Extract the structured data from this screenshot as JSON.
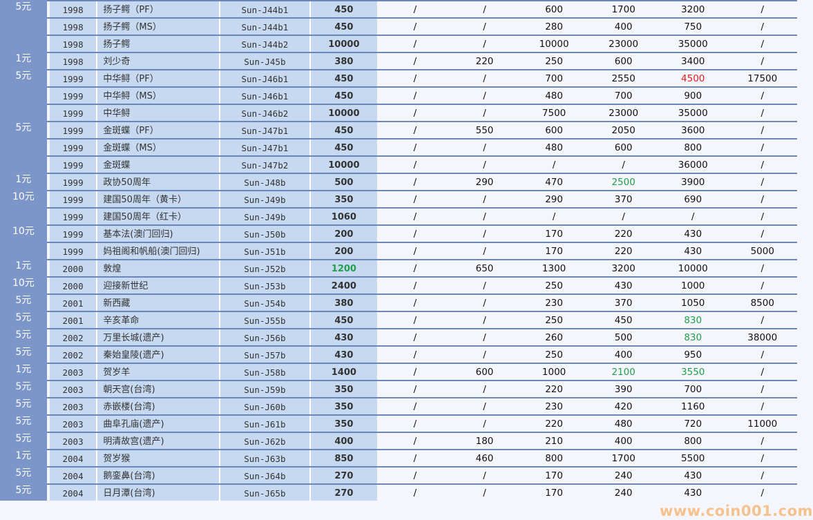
{
  "colors": {
    "green": "#1fa04a",
    "red": "#e41b1b",
    "denom_bg": "#7d96c9",
    "info_bg": "#c6d9f0"
  },
  "rows": [
    {
      "denom": "5元",
      "year": "1998",
      "name": "扬子鳄（PF）",
      "code": "Sun-J44b1",
      "issue": "450",
      "prices": [
        "/",
        "/",
        "600",
        "1700",
        "3200",
        "/"
      ]
    },
    {
      "denom": "",
      "year": "1998",
      "name": "扬子鳄（MS）",
      "code": "Sun-J44b1",
      "issue": "450",
      "prices": [
        "/",
        "/",
        "280",
        "400",
        "750",
        "/"
      ]
    },
    {
      "denom": "",
      "year": "1998",
      "name": "扬子鳄",
      "code": "Sun-J44b2",
      "issue": "10000",
      "prices": [
        "/",
        "/",
        "10000",
        "23000",
        "35000",
        "/"
      ]
    },
    {
      "denom": "1元",
      "year": "1998",
      "name": "刘少奇",
      "code": "Sun-J45b",
      "issue": "380",
      "prices": [
        "/",
        "220",
        "250",
        "600",
        "3400",
        "/"
      ]
    },
    {
      "denom": "5元",
      "year": "1999",
      "name": "中华鲟（PF）",
      "code": "Sun-J46b1",
      "issue": "450",
      "prices": [
        "/",
        "/",
        "700",
        "2550",
        "4500",
        "17500"
      ],
      "highlight": {
        "4": "red"
      }
    },
    {
      "denom": "",
      "year": "1999",
      "name": "中华鲟（MS）",
      "code": "Sun-J46b1",
      "issue": "450",
      "prices": [
        "/",
        "/",
        "480",
        "700",
        "900",
        "/"
      ],
      "cont": true
    },
    {
      "denom": "",
      "year": "1999",
      "name": "中华鲟",
      "code": "Sun-J46b2",
      "issue": "10000",
      "prices": [
        "/",
        "/",
        "7500",
        "23000",
        "35000",
        "/"
      ],
      "cont": true
    },
    {
      "denom": "5元",
      "year": "1999",
      "name": "金斑蝶（PF）",
      "code": "Sun-J47b1",
      "issue": "450",
      "prices": [
        "/",
        "550",
        "600",
        "2050",
        "3600",
        "/"
      ]
    },
    {
      "denom": "",
      "year": "1999",
      "name": "金斑蝶（MS）",
      "code": "Sun-J47b1",
      "issue": "450",
      "prices": [
        "/",
        "/",
        "480",
        "600",
        "800",
        "/"
      ],
      "cont": true
    },
    {
      "denom": "",
      "year": "1999",
      "name": "金斑蝶",
      "code": "Sun-J47b2",
      "issue": "10000",
      "prices": [
        "/",
        "/",
        "/",
        "/",
        "36000",
        "/"
      ],
      "cont": true
    },
    {
      "denom": "1元",
      "year": "1999",
      "name": "政协50周年",
      "code": "Sun-J48b",
      "issue": "500",
      "prices": [
        "/",
        "290",
        "470",
        "2500",
        "3900",
        "/"
      ],
      "highlight": {
        "3": "green"
      }
    },
    {
      "denom": "10元",
      "year": "1999",
      "name": "建国50周年（黄卡）",
      "code": "Sun-J49b",
      "issue": "350",
      "prices": [
        "/",
        "/",
        "290",
        "370",
        "690",
        "/"
      ]
    },
    {
      "denom": "",
      "year": "1999",
      "name": "建国50周年（红卡）",
      "code": "Sun-J49b",
      "issue": "1060",
      "prices": [
        "/",
        "/",
        "/",
        "/",
        "/",
        "/"
      ]
    },
    {
      "denom": "10元",
      "year": "1999",
      "name": "基本法(澳门回归)",
      "code": "Sun-J50b",
      "issue": "200",
      "prices": [
        "/",
        "/",
        "170",
        "220",
        "430",
        "/"
      ]
    },
    {
      "denom": "",
      "year": "1999",
      "name": "妈祖阁和帆船(澳门回归)",
      "code": "Sun-J51b",
      "issue": "200",
      "prices": [
        "/",
        "/",
        "170",
        "220",
        "430",
        "5000"
      ],
      "cont": true
    },
    {
      "denom": "1元",
      "year": "2000",
      "name": "敦煌",
      "code": "Sun-J52b",
      "issue": "1200",
      "issue_highlight": "green",
      "prices": [
        "/",
        "650",
        "1300",
        "3200",
        "10000",
        "/"
      ]
    },
    {
      "denom": "10元",
      "year": "2000",
      "name": "迎接新世纪",
      "code": "Sun-J53b",
      "issue": "2400",
      "prices": [
        "/",
        "/",
        "250",
        "430",
        "1000",
        "/"
      ]
    },
    {
      "denom": "5元",
      "year": "2001",
      "name": "新西藏",
      "code": "Sun-J54b",
      "issue": "380",
      "prices": [
        "/",
        "/",
        "230",
        "370",
        "1050",
        "8500"
      ]
    },
    {
      "denom": "5元",
      "year": "2001",
      "name": "辛亥革命",
      "code": "Sun-J55b",
      "issue": "450",
      "prices": [
        "/",
        "/",
        "250",
        "450",
        "830",
        "/"
      ],
      "highlight": {
        "4": "green"
      }
    },
    {
      "denom": "5元",
      "year": "2002",
      "name": "万里长城(遗产)",
      "code": "Sun-J56b",
      "issue": "430",
      "prices": [
        "/",
        "/",
        "260",
        "500",
        "830",
        "38000"
      ],
      "highlight": {
        "4": "green"
      }
    },
    {
      "denom": "5元",
      "year": "2002",
      "name": "秦始皇陵(遗产)",
      "code": "Sun-J57b",
      "issue": "430",
      "prices": [
        "/",
        "/",
        "250",
        "400",
        "950",
        "/"
      ]
    },
    {
      "denom": "1元",
      "year": "2003",
      "name": "贺岁羊",
      "code": "Sun-J58b",
      "issue": "1400",
      "prices": [
        "/",
        "600",
        "1000",
        "2100",
        "3550",
        "/"
      ],
      "highlight": {
        "3": "green",
        "4": "green"
      }
    },
    {
      "denom": "5元",
      "year": "2003",
      "name": "朝天宫(台湾)",
      "code": "Sun-J59b",
      "issue": "350",
      "prices": [
        "/",
        "/",
        "220",
        "390",
        "700",
        "/"
      ]
    },
    {
      "denom": "5元",
      "year": "2003",
      "name": "赤嵌楼(台湾)",
      "code": "Sun-J60b",
      "issue": "350",
      "prices": [
        "/",
        "/",
        "230",
        "420",
        "1160",
        "/"
      ]
    },
    {
      "denom": "5元",
      "year": "2003",
      "name": "曲阜孔庙(遗产)",
      "code": "Sun-J61b",
      "issue": "350",
      "prices": [
        "/",
        "/",
        "220",
        "480",
        "720",
        "11000"
      ]
    },
    {
      "denom": "5元",
      "year": "2003",
      "name": "明清故宫(遗产)",
      "code": "Sun-J62b",
      "issue": "400",
      "prices": [
        "/",
        "180",
        "210",
        "400",
        "800",
        "/"
      ]
    },
    {
      "denom": "1元",
      "year": "2004",
      "name": "贺岁猴",
      "code": "Sun-J63b",
      "issue": "850",
      "prices": [
        "/",
        "460",
        "800",
        "1700",
        "5500",
        "/"
      ]
    },
    {
      "denom": "5元",
      "year": "2004",
      "name": "鹅銮鼻(台湾)",
      "code": "Sun-J64b",
      "issue": "270",
      "prices": [
        "/",
        "/",
        "170",
        "240",
        "430",
        "/"
      ]
    },
    {
      "denom": "5元",
      "year": "2004",
      "name": "日月潭(台湾)",
      "code": "Sun-J65b",
      "issue": "270",
      "prices": [
        "/",
        "/",
        "170",
        "240",
        "430",
        "/"
      ]
    }
  ],
  "watermark": "www.coin001.com"
}
